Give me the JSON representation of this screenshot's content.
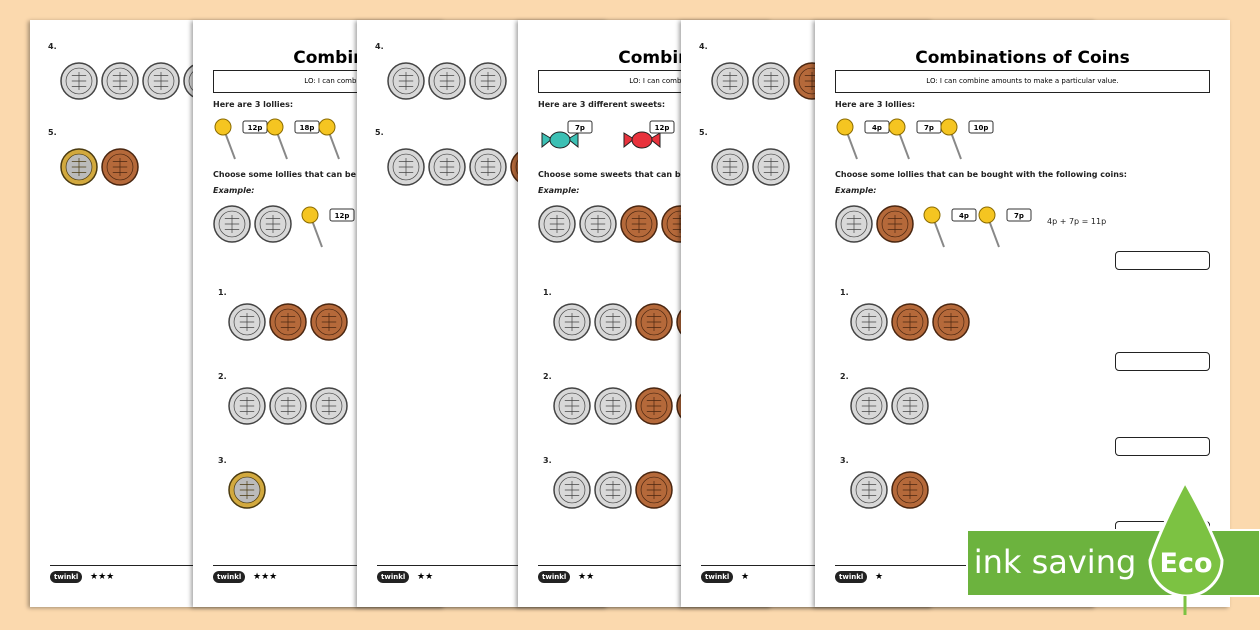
{
  "sheets": [
    {
      "questions": [
        "4.",
        "5."
      ],
      "footer": {
        "logo": "twinkl",
        "stars": "★★★"
      }
    },
    {
      "title": "Combinations of Coins",
      "objective": "LO: I can combine amounts to make a particular value.",
      "intro": "Here are 3 lollies:",
      "prices": [
        "12p",
        "18p"
      ],
      "instruction": "Choose some lollies that can be bought with the following coins:",
      "example": {
        "label": "Example:",
        "prices": [
          "12p"
        ]
      },
      "questions": [
        "1.",
        "2.",
        "3."
      ],
      "footer": {
        "logo": "twinkl",
        "stars": "★★★"
      }
    },
    {
      "questions": [
        "4.",
        "5."
      ],
      "footer": {
        "logo": "twinkl",
        "stars": "★★"
      }
    },
    {
      "title": "Combinations of Coins",
      "objective": "LO: I can combine amounts to make a particular value.",
      "intro": "Here are 3 different sweets:",
      "prices": [
        "7p",
        "12p"
      ],
      "instruction": "Choose some sweets that can be bought with the following coins:",
      "example": {
        "label": "Example:",
        "prices": []
      },
      "questions": [
        "1.",
        "2.",
        "3."
      ],
      "footer": {
        "logo": "twinkl",
        "stars": "★★"
      }
    },
    {
      "questions": [
        "4.",
        "5."
      ],
      "footer": {
        "logo": "twinkl",
        "stars": "★"
      }
    },
    {
      "title": "Combinations of Coins",
      "objective": "LO: I can combine amounts to make a particular value.",
      "intro": "Here are 3 lollies:",
      "prices": [
        "4p",
        "7p",
        "10p"
      ],
      "instruction": "Choose some lollies that can be bought with the following coins:",
      "example": {
        "label": "Example:",
        "prices": [
          "4p",
          "7p"
        ],
        "answer": "4p + 7p = 11p"
      },
      "questions": [
        "1.",
        "2.",
        "3."
      ],
      "footer": {
        "logo": "twinkl",
        "stars": "★"
      }
    }
  ],
  "badge": {
    "text": "ink saving",
    "label": "Eco"
  }
}
